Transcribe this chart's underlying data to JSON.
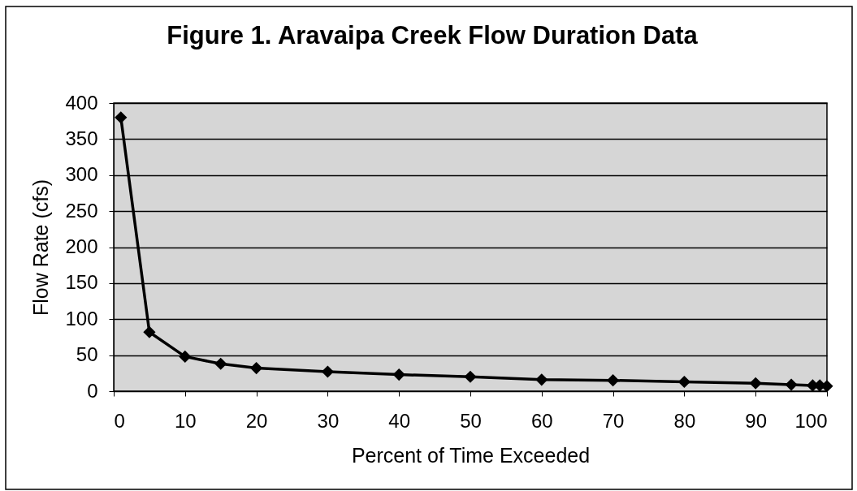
{
  "chart_data": {
    "type": "line",
    "title": "Figure 1.  Aravaipa Creek Flow Duration Data",
    "xlabel": "Percent of Time Exceeded",
    "ylabel": "Flow Rate (cfs)",
    "x": [
      1,
      5,
      10,
      15,
      20,
      30,
      40,
      50,
      60,
      70,
      80,
      90,
      95,
      98,
      99,
      100
    ],
    "series": [
      {
        "color": "#000000",
        "values": [
          380,
          82,
          48,
          38,
          32,
          27,
          23,
          20,
          16,
          15,
          13,
          11,
          9,
          8,
          8,
          7
        ]
      }
    ],
    "xlim": [
      0,
      100
    ],
    "xticks": [
      0,
      10,
      20,
      30,
      40,
      50,
      60,
      70,
      80,
      90,
      100
    ],
    "ylim": [
      0,
      400
    ],
    "yticks": [
      0,
      50,
      100,
      150,
      200,
      250,
      300,
      350,
      400
    ],
    "grid": "y",
    "marker": "diamond",
    "line_style": "solid"
  }
}
